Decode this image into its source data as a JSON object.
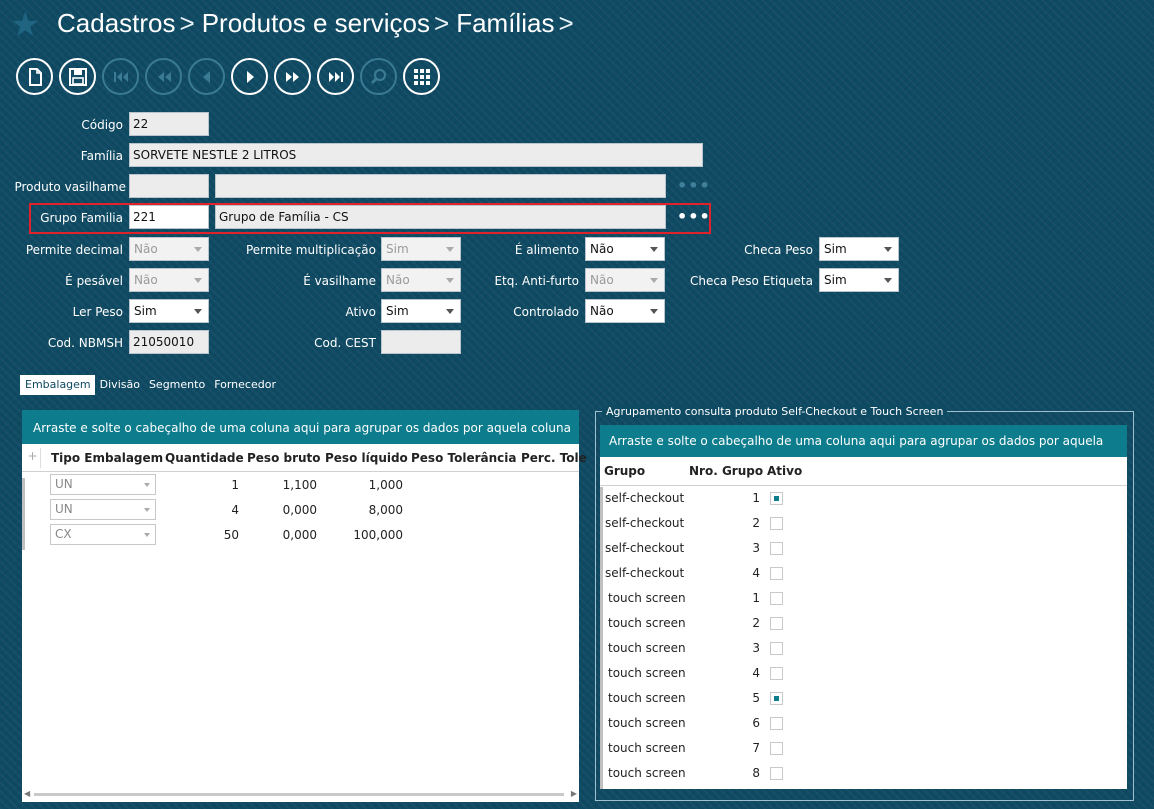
{
  "breadcrumb": [
    "Cadastros",
    "Produtos e serviços",
    "Famílias"
  ],
  "toolbar": [
    {
      "name": "new-icon",
      "enabled": true
    },
    {
      "name": "save-icon",
      "enabled": true
    },
    {
      "name": "first-icon",
      "enabled": false
    },
    {
      "name": "previous-page-icon",
      "enabled": false
    },
    {
      "name": "previous-icon",
      "enabled": false
    },
    {
      "name": "next-icon",
      "enabled": true
    },
    {
      "name": "next-page-icon",
      "enabled": true
    },
    {
      "name": "last-icon",
      "enabled": true
    },
    {
      "name": "search-icon",
      "enabled": false
    },
    {
      "name": "grid-icon",
      "enabled": true
    }
  ],
  "form": {
    "codigo": {
      "label": "Código",
      "value": "22"
    },
    "familia": {
      "label": "Família",
      "value": "SORVETE NESTLE 2 LITROS"
    },
    "produto_vasilhame": {
      "label": "Produto vasilhame",
      "code": "",
      "description": ""
    },
    "grupo_familia": {
      "label": "Grupo Familia",
      "code": "221",
      "description": "Grupo de Família - CS"
    },
    "permite_decimal": {
      "label": "Permite decimal",
      "value": "Não"
    },
    "permite_multiplicacao": {
      "label": "Permite multiplicação",
      "value": "Sim"
    },
    "e_alimento": {
      "label": "É alimento",
      "value": "Não"
    },
    "checa_peso": {
      "label": "Checa Peso",
      "value": "Sim"
    },
    "e_pesavel": {
      "label": "É pesável",
      "value": "Não"
    },
    "e_vasilhame": {
      "label": "É vasilhame",
      "value": "Não"
    },
    "etq_antifurto": {
      "label": "Etq. Anti-furto",
      "value": "Não"
    },
    "checa_peso_etiqueta": {
      "label": "Checa Peso Etiqueta",
      "value": "Sim"
    },
    "ler_peso": {
      "label": "Ler Peso",
      "value": "Sim"
    },
    "ativo": {
      "label": "Ativo",
      "value": "Sim"
    },
    "controlado": {
      "label": "Controlado",
      "value": "Não"
    },
    "cod_nbmsh": {
      "label": "Cod. NBMSH",
      "value": "21050010"
    },
    "cod_cest": {
      "label": "Cod. CEST",
      "value": ""
    }
  },
  "tabs": [
    "Embalagem",
    "Divisão",
    "Segmento",
    "Fornecedor"
  ],
  "embalagem": {
    "group_hint": "Arraste e solte o cabeçalho de uma coluna aqui para agrupar os dados por aquela coluna",
    "columns": [
      "Tipo Embalagem",
      "Quantidade",
      "Peso bruto",
      "Peso líquido",
      "Peso Tolerância",
      "Perc. Tole"
    ],
    "rows": [
      {
        "tipo": "UN",
        "quantidade": "1",
        "peso_bruto": "1,100",
        "peso_liquido": "1,000"
      },
      {
        "tipo": "UN",
        "quantidade": "4",
        "peso_bruto": "0,000",
        "peso_liquido": "8,000"
      },
      {
        "tipo": "CX",
        "quantidade": "50",
        "peso_bruto": "0,000",
        "peso_liquido": "100,000"
      }
    ]
  },
  "agrupamento": {
    "legend": "Agrupamento consulta produto Self-Checkout e Touch Screen",
    "group_hint": "Arraste e solte o cabeçalho de uma coluna aqui para agrupar os dados por aquela coluna",
    "columns": [
      "Grupo",
      "Nro. Grupo",
      "Ativo"
    ],
    "rows": [
      {
        "grupo": "self-checkout",
        "nro": "1",
        "ativo": true
      },
      {
        "grupo": "self-checkout",
        "nro": "2",
        "ativo": false
      },
      {
        "grupo": "self-checkout",
        "nro": "3",
        "ativo": false
      },
      {
        "grupo": "self-checkout",
        "nro": "4",
        "ativo": false
      },
      {
        "grupo": "touch screen",
        "nro": "1",
        "ativo": false
      },
      {
        "grupo": "touch screen",
        "nro": "2",
        "ativo": false
      },
      {
        "grupo": "touch screen",
        "nro": "3",
        "ativo": false
      },
      {
        "grupo": "touch screen",
        "nro": "4",
        "ativo": false
      },
      {
        "grupo": "touch screen",
        "nro": "5",
        "ativo": true
      },
      {
        "grupo": "touch screen",
        "nro": "6",
        "ativo": false
      },
      {
        "grupo": "touch screen",
        "nro": "7",
        "ativo": false
      },
      {
        "grupo": "touch screen",
        "nro": "8",
        "ativo": false
      }
    ]
  }
}
